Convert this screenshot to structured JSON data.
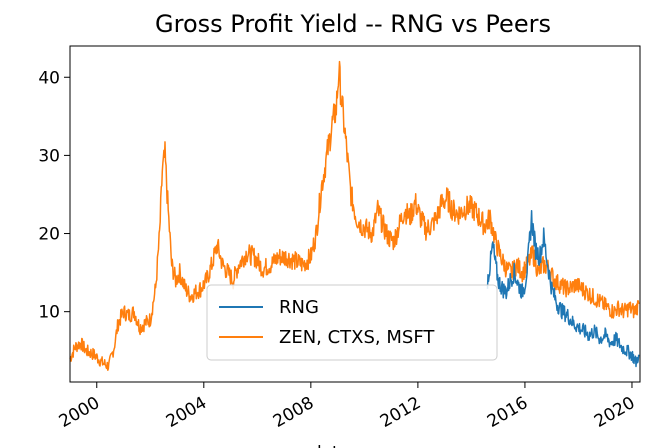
{
  "chart_data": {
    "type": "line",
    "title": "Gross Profit Yield -- RNG vs Peers",
    "xlabel": "date",
    "ylabel": "",
    "xlim": [
      1999.0,
      2020.3
    ],
    "ylim": [
      1.0,
      44.0
    ],
    "x_ticks": [
      2000,
      2004,
      2008,
      2012,
      2016,
      2020
    ],
    "x_tick_labels": [
      "2000",
      "2004",
      "2008",
      "2012",
      "2016",
      "2020"
    ],
    "y_ticks": [
      10,
      20,
      30,
      40
    ],
    "y_tick_labels": [
      "10",
      "20",
      "30",
      "40"
    ],
    "legend_position": "lower-center",
    "series": [
      {
        "name": "RNG",
        "color": "#1f77b4",
        "x": [
          2014.6,
          2014.7,
          2014.8,
          2014.9,
          2015.0,
          2015.15,
          2015.3,
          2015.45,
          2015.6,
          2015.75,
          2015.9,
          2016.0,
          2016.1,
          2016.25,
          2016.4,
          2016.55,
          2016.7,
          2016.85,
          2017.0,
          2017.2,
          2017.4,
          2017.6,
          2017.8,
          2018.0,
          2018.2,
          2018.4,
          2018.6,
          2018.8,
          2019.0,
          2019.2,
          2019.4,
          2019.6,
          2019.8,
          2020.0,
          2020.15,
          2020.25
        ],
        "values": [
          14,
          16,
          18.5,
          16,
          14,
          13,
          12.5,
          14,
          15,
          13.5,
          12.5,
          13.5,
          16,
          22,
          18,
          17,
          19.5,
          16,
          13,
          11,
          10,
          9.5,
          8.5,
          8,
          7.5,
          7,
          7.5,
          6.5,
          7,
          6,
          6.5,
          5.5,
          5,
          4.5,
          3.5,
          4.5
        ]
      },
      {
        "name": "ZEN, CTXS, MSFT",
        "color": "#ff7f0e",
        "x": [
          1999.0,
          1999.2,
          1999.4,
          1999.6,
          1999.9,
          2000.2,
          2000.45,
          2000.65,
          2000.8,
          2001.0,
          2001.2,
          2001.4,
          2001.6,
          2001.8,
          2002.0,
          2002.2,
          2002.35,
          2002.45,
          2002.55,
          2002.65,
          2002.8,
          2002.95,
          2003.1,
          2003.3,
          2003.5,
          2003.7,
          2003.9,
          2004.1,
          2004.3,
          2004.5,
          2004.7,
          2004.9,
          2005.1,
          2005.3,
          2005.6,
          2005.9,
          2006.2,
          2006.5,
          2006.8,
          2007.1,
          2007.4,
          2007.7,
          2008.0,
          2008.2,
          2008.4,
          2008.6,
          2008.8,
          2008.95,
          2009.05,
          2009.15,
          2009.3,
          2009.5,
          2009.7,
          2009.9,
          2010.1,
          2010.3,
          2010.5,
          2010.7,
          2010.9,
          2011.1,
          2011.3,
          2011.5,
          2011.7,
          2011.9,
          2012.1,
          2012.3,
          2012.5,
          2012.7,
          2012.9,
          2013.1,
          2013.3,
          2013.5,
          2013.7,
          2013.9,
          2014.1,
          2014.3,
          2014.5,
          2014.7,
          2014.9,
          2015.1,
          2015.3,
          2015.5,
          2015.7,
          2015.9,
          2016.1,
          2016.3,
          2016.5,
          2016.7,
          2016.9,
          2017.1,
          2017.3,
          2017.5,
          2017.7,
          2017.9,
          2018.1,
          2018.3,
          2018.5,
          2018.7,
          2018.9,
          2019.1,
          2019.3,
          2019.5,
          2019.7,
          2019.9,
          2020.1,
          2020.25
        ],
        "values": [
          4,
          5.5,
          6,
          5,
          4.5,
          3.5,
          3,
          5.5,
          8.5,
          10,
          9.5,
          10,
          8,
          8.5,
          9,
          13,
          20,
          28,
          30,
          24,
          16,
          14,
          15,
          13,
          12,
          12.5,
          13,
          14,
          16,
          18.5,
          16,
          15,
          14,
          16,
          17.5,
          17,
          15.5,
          16,
          17,
          17,
          16.5,
          16,
          17,
          20,
          26,
          30,
          34,
          36,
          41,
          37,
          32,
          25,
          22,
          21,
          20.5,
          20,
          23,
          21,
          19.5,
          19,
          21,
          23,
          22,
          24,
          22,
          20.5,
          21,
          22,
          24,
          24.5,
          23,
          22.5,
          23,
          23.5,
          23,
          22,
          21,
          22,
          19,
          17,
          15.5,
          15,
          16,
          15,
          16,
          17.5,
          15,
          16,
          15.5,
          14,
          13.5,
          13,
          13,
          13.5,
          13,
          12.5,
          12,
          11.5,
          11,
          10.5,
          10,
          10.5,
          10,
          10.5,
          10,
          11
        ]
      }
    ]
  }
}
